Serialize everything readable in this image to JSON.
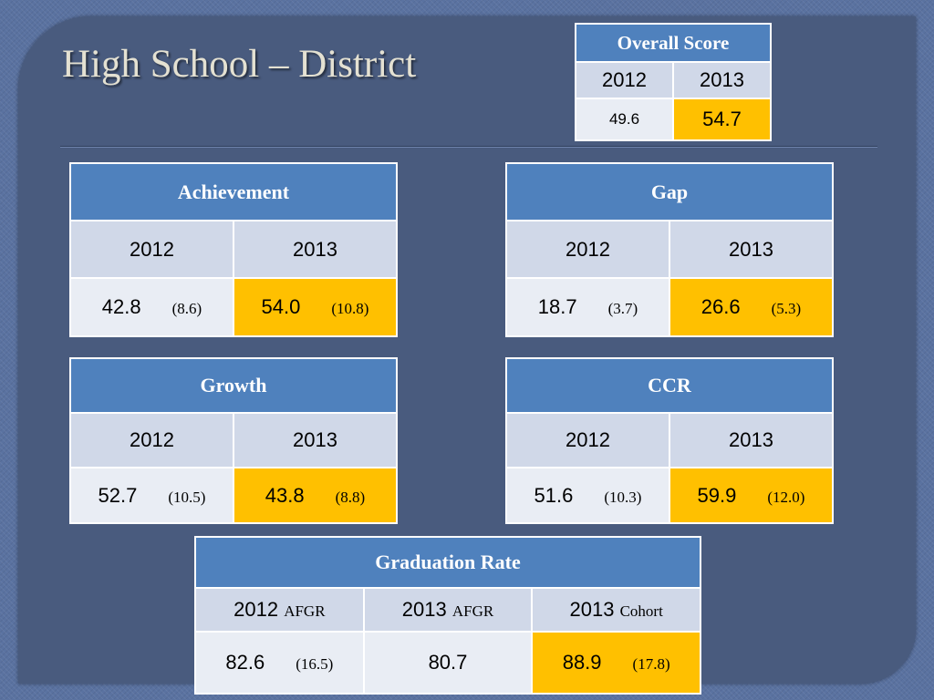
{
  "title": "High School – District",
  "overall": {
    "header": "Overall Score",
    "years": [
      "2012",
      "2013"
    ],
    "values": [
      "49.6",
      "54.7"
    ]
  },
  "achievement": {
    "header": "Achievement",
    "years": [
      "2012",
      "2013"
    ],
    "v2012": "42.8",
    "p2012": "(8.6)",
    "v2013": "54.0",
    "p2013": "(10.8)"
  },
  "gap": {
    "header": "Gap",
    "years": [
      "2012",
      "2013"
    ],
    "v2012": "18.7",
    "p2012": "(3.7)",
    "v2013": "26.6",
    "p2013": "(5.3)"
  },
  "growth": {
    "header": "Growth",
    "years": [
      "2012",
      "2013"
    ],
    "v2012": "52.7",
    "p2012": "(10.5)",
    "v2013": "43.8",
    "p2013": "(8.8)"
  },
  "ccr": {
    "header": "CCR",
    "years": [
      "2012",
      "2013"
    ],
    "v2012": "51.6",
    "p2012": "(10.3)",
    "v2013": "59.9",
    "p2013": "(12.0)"
  },
  "graduation": {
    "header": "Graduation Rate",
    "cols": [
      {
        "year": "2012",
        "tag": "AFGR"
      },
      {
        "year": "2013",
        "tag": "AFGR"
      },
      {
        "year": "2013",
        "tag": "Cohort"
      }
    ],
    "v1": "82.6",
    "p1": "(16.5)",
    "v2": "80.7",
    "v3": "88.9",
    "p3": "(17.8)"
  },
  "colors": {
    "header_blue": "#4f81bd",
    "highlight": "#ffc000",
    "background": "#495b7e"
  }
}
